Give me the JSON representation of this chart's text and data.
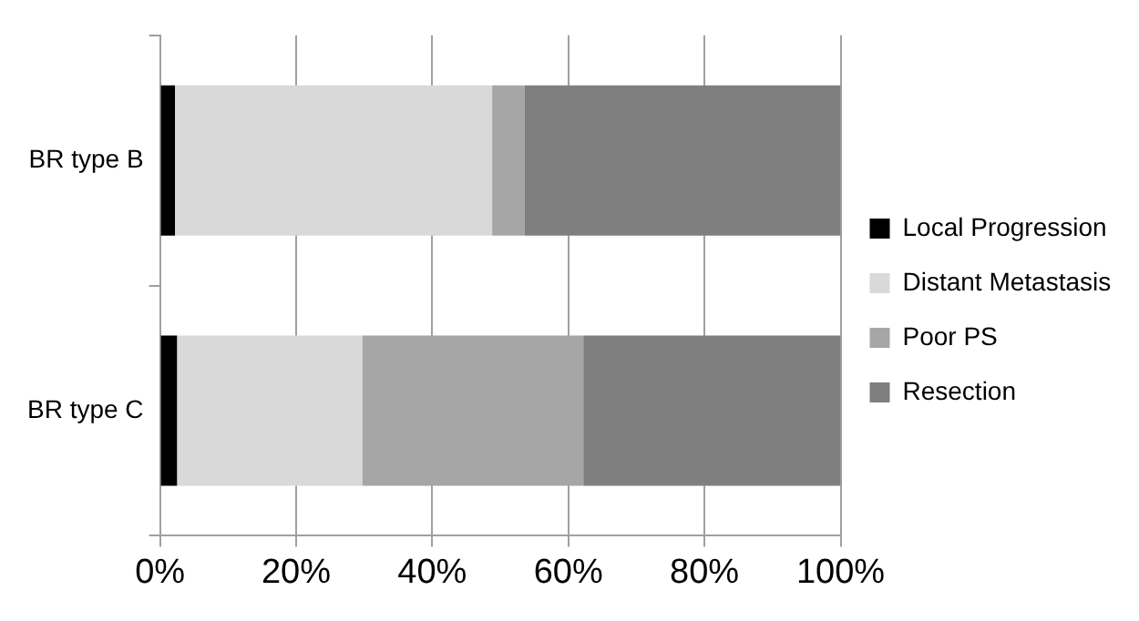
{
  "chart_data": {
    "type": "bar",
    "orientation": "horizontal",
    "stacked": true,
    "categories": [
      "BR type B",
      "BR type C"
    ],
    "series": [
      {
        "name": "Local Progression",
        "color": "#000000",
        "values": [
          2.2,
          2.5
        ]
      },
      {
        "name": "Distant Metastasis",
        "color": "#d9d9d9",
        "values": [
          46.6,
          27.2
        ]
      },
      {
        "name": "Poor PS",
        "color": "#a6a6a6",
        "values": [
          4.8,
          32.5
        ]
      },
      {
        "name": "Resection",
        "color": "#7f7f7f",
        "values": [
          46.4,
          37.8
        ]
      }
    ],
    "xlim": [
      0,
      100
    ],
    "xticks": [
      {
        "value": 0,
        "label": "0%"
      },
      {
        "value": 20,
        "label": "20%"
      },
      {
        "value": 40,
        "label": "40%"
      },
      {
        "value": 60,
        "label": "60%"
      },
      {
        "value": 80,
        "label": "80%"
      },
      {
        "value": 100,
        "label": "100%"
      }
    ],
    "grid": "x",
    "legend": "right"
  }
}
